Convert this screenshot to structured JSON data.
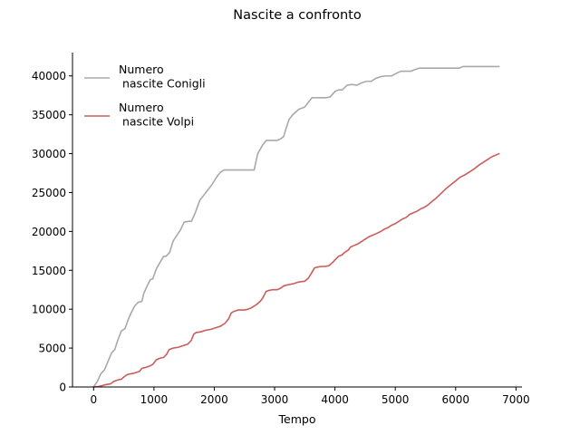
{
  "chart_data": {
    "type": "line",
    "title": "Nascite a confronto",
    "xlabel": "Tempo",
    "ylabel": "",
    "xlim": [
      -350,
      7100
    ],
    "ylim": [
      0,
      43000
    ],
    "xticks": [
      0,
      1000,
      2000,
      3000,
      4000,
      5000,
      6000,
      7000
    ],
    "yticks": [
      0,
      5000,
      10000,
      15000,
      20000,
      25000,
      30000,
      35000,
      40000
    ],
    "grid": false,
    "legend_position": "top-left",
    "series": [
      {
        "name": "Numero\n nascite Conigli",
        "color": "#a9a9a9",
        "x": [
          0,
          60,
          120,
          180,
          250,
          300,
          350,
          400,
          460,
          520,
          580,
          620,
          680,
          740,
          800,
          830,
          900,
          940,
          980,
          1040,
          1100,
          1160,
          1200,
          1260,
          1320,
          1380,
          1440,
          1500,
          1580,
          1620,
          1680,
          1760,
          1840,
          1900,
          1960,
          2040,
          2100,
          2160,
          2260,
          2330,
          2400,
          2500,
          2600,
          2660,
          2720,
          2800,
          2860,
          2960,
          3040,
          3100,
          3150,
          3180,
          3240,
          3300,
          3400,
          3500,
          3560,
          3620,
          3700,
          3800,
          3860,
          3920,
          4000,
          4060,
          4120,
          4200,
          4280,
          4360,
          4440,
          4520,
          4600,
          4680,
          4760,
          4840,
          4940,
          5060,
          5100,
          5160,
          5260,
          5320,
          5400,
          5460,
          5560,
          5660,
          5800,
          5900,
          6060,
          6120,
          6300,
          6500,
          6720
        ],
        "y": [
          0,
          700,
          1700,
          2200,
          3500,
          4400,
          4800,
          6000,
          7200,
          7500,
          8800,
          9500,
          10400,
          10900,
          11000,
          12000,
          13200,
          13800,
          13900,
          15200,
          16000,
          16800,
          16800,
          17300,
          18800,
          19500,
          20200,
          21200,
          21300,
          21300,
          22300,
          24000,
          24800,
          25400,
          26000,
          27000,
          27600,
          27900,
          27900,
          27900,
          27900,
          27900,
          27900,
          27900,
          30000,
          31100,
          31700,
          31700,
          31700,
          31900,
          32200,
          33000,
          34400,
          35000,
          35700,
          36000,
          36600,
          37200,
          37200,
          37200,
          37200,
          37300,
          38000,
          38200,
          38200,
          38800,
          38900,
          38800,
          39100,
          39300,
          39300,
          39700,
          39900,
          40000,
          40000,
          40500,
          40600,
          40600,
          40600,
          40800,
          41000,
          41000,
          41000,
          41000,
          41000,
          41000,
          41000,
          41200,
          41200,
          41200,
          41200
        ]
      },
      {
        "name": "Numero\n nascite Volpi",
        "color": "#cd5c5c",
        "x": [
          0,
          80,
          130,
          200,
          280,
          330,
          400,
          460,
          520,
          560,
          620,
          680,
          760,
          800,
          860,
          930,
          980,
          1040,
          1100,
          1160,
          1210,
          1250,
          1320,
          1400,
          1480,
          1560,
          1620,
          1660,
          1700,
          1780,
          1860,
          1940,
          2020,
          2100,
          2180,
          2240,
          2280,
          2320,
          2400,
          2500,
          2560,
          2620,
          2700,
          2760,
          2800,
          2860,
          2900,
          2960,
          3040,
          3100,
          3150,
          3200,
          3260,
          3320,
          3400,
          3500,
          3560,
          3600,
          3660,
          3700,
          3780,
          3840,
          3900,
          3960,
          4020,
          4060,
          4120,
          4160,
          4220,
          4260,
          4320,
          4380,
          4440,
          4500,
          4560,
          4620,
          4680,
          4760,
          4820,
          4880,
          4940,
          5000,
          5060,
          5120,
          5180,
          5240,
          5300,
          5360,
          5420,
          5480,
          5540,
          5600,
          5680,
          5760,
          5840,
          5920,
          6000,
          6080,
          6160,
          6240,
          6300,
          6400,
          6500,
          6600,
          6720
        ],
        "y": [
          0,
          60,
          150,
          300,
          400,
          700,
          900,
          1000,
          1400,
          1600,
          1700,
          1800,
          2000,
          2400,
          2500,
          2700,
          2900,
          3500,
          3700,
          3800,
          4200,
          4800,
          5000,
          5100,
          5300,
          5500,
          6000,
          6800,
          7000,
          7100,
          7300,
          7400,
          7600,
          7800,
          8200,
          8800,
          9500,
          9700,
          9900,
          9900,
          10000,
          10200,
          10600,
          11000,
          11400,
          12300,
          12400,
          12500,
          12500,
          12700,
          13000,
          13100,
          13200,
          13300,
          13500,
          13600,
          14000,
          14500,
          15300,
          15400,
          15500,
          15500,
          15600,
          16000,
          16500,
          16800,
          17000,
          17300,
          17600,
          18000,
          18200,
          18400,
          18700,
          19000,
          19300,
          19500,
          19700,
          20000,
          20300,
          20500,
          20800,
          21000,
          21300,
          21600,
          21800,
          22200,
          22400,
          22600,
          22900,
          23100,
          23400,
          23800,
          24300,
          24900,
          25500,
          26000,
          26500,
          27000,
          27300,
          27700,
          28000,
          28600,
          29100,
          29600,
          30000
        ]
      }
    ]
  }
}
